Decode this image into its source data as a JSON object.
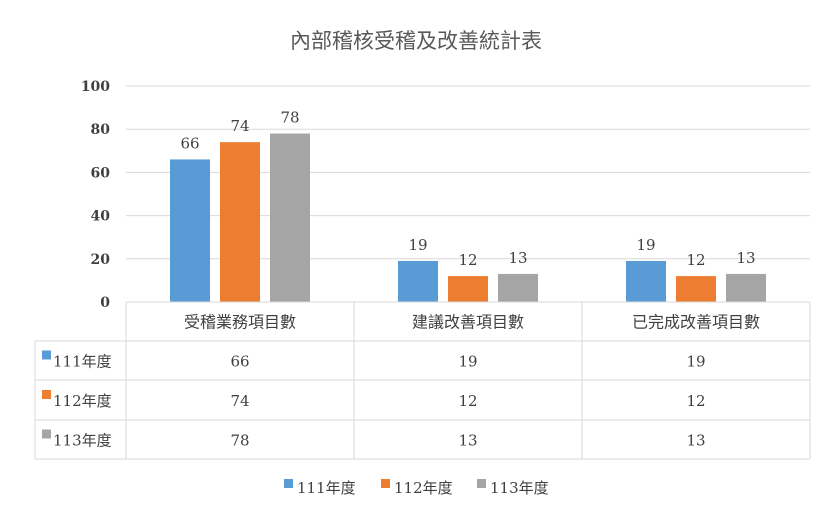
{
  "chart_data": {
    "type": "bar",
    "title": "內部稽核受稽及改善統計表",
    "categories": [
      "受稽業務項目數",
      "建議改善項目數",
      "已完成改善項目數"
    ],
    "series": [
      {
        "name": "111年度",
        "color": "#5B9BD5",
        "values": [
          66,
          19,
          19
        ]
      },
      {
        "name": "112年度",
        "color": "#ED7D31",
        "values": [
          74,
          12,
          12
        ]
      },
      {
        "name": "113年度",
        "color": "#A5A5A5",
        "values": [
          78,
          13,
          13
        ]
      }
    ],
    "yticks": [
      0,
      20,
      40,
      60,
      80,
      100
    ],
    "ylim": [
      0,
      100
    ],
    "grid": true,
    "legend_position": "bottom",
    "data_table": true
  }
}
